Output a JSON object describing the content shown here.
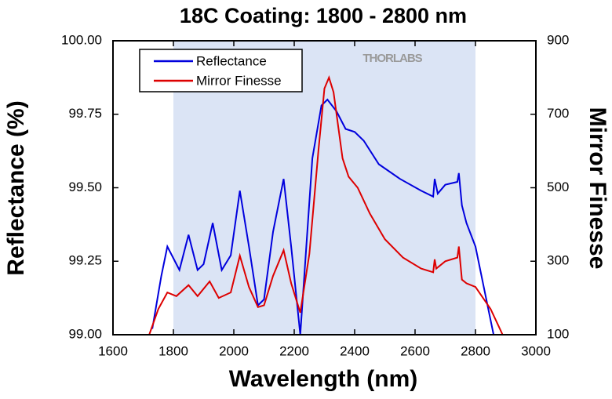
{
  "chart_data": {
    "type": "line",
    "title": "18C Coating: 1800 - 2800 nm",
    "xlabel": "Wavelength (nm)",
    "ylabel": "Reflectance (%)",
    "y2label": "Mirror Finesse",
    "annotation": "THORLABS",
    "highlight_range": [
      1800,
      2800
    ],
    "highlight_color": "#dbe4f5",
    "xlim": [
      1600,
      3000
    ],
    "xticks": [
      1600,
      1800,
      2000,
      2200,
      2400,
      2600,
      2800,
      3000
    ],
    "ylim": [
      99,
      100
    ],
    "yticks": [
      {
        "value": 99,
        "label": "99.00"
      },
      99.25,
      {
        "value": 99.5,
        "label": "99.50"
      },
      99.75,
      {
        "value": 100,
        "label": "100.00"
      }
    ],
    "y2lim": [
      100,
      900
    ],
    "y2ticks": [
      100,
      300,
      500,
      700,
      900
    ],
    "legend": "upper left",
    "series": [
      {
        "name": "Reflectance",
        "color": "#0000dd",
        "x": [
          1730,
          1760,
          1780,
          1800,
          1820,
          1850,
          1880,
          1900,
          1930,
          1960,
          1990,
          2020,
          2050,
          2080,
          2100,
          2130,
          2165,
          2190,
          2220,
          2240,
          2260,
          2290,
          2310,
          2340,
          2370,
          2400,
          2430,
          2480,
          2550,
          2620,
          2660,
          2665,
          2675,
          2700,
          2740,
          2745,
          2755,
          2770,
          2800,
          2830,
          2860
        ],
        "values": [
          99.02,
          99.2,
          99.3,
          99.26,
          99.22,
          99.34,
          99.22,
          99.24,
          99.38,
          99.22,
          99.27,
          99.49,
          99.3,
          99.1,
          99.12,
          99.35,
          99.53,
          99.3,
          99.0,
          99.3,
          99.6,
          99.78,
          99.8,
          99.76,
          99.7,
          99.69,
          99.66,
          99.58,
          99.53,
          99.49,
          99.47,
          99.53,
          99.48,
          99.51,
          99.52,
          99.55,
          99.44,
          99.38,
          99.3,
          99.15,
          99.0
        ]
      },
      {
        "name": "Mirror Finesse",
        "color": "#dd0000",
        "axis": "y2",
        "x": [
          1720,
          1750,
          1780,
          1810,
          1850,
          1880,
          1920,
          1950,
          1990,
          2020,
          2050,
          2080,
          2100,
          2130,
          2165,
          2190,
          2220,
          2250,
          2280,
          2300,
          2315,
          2330,
          2360,
          2380,
          2410,
          2450,
          2500,
          2560,
          2620,
          2660,
          2665,
          2670,
          2700,
          2740,
          2745,
          2755,
          2770,
          2800,
          2850,
          2890
        ],
        "values": [
          100,
          170,
          215,
          205,
          235,
          205,
          245,
          200,
          215,
          315,
          230,
          175,
          180,
          260,
          330,
          240,
          160,
          320,
          600,
          770,
          800,
          760,
          580,
          530,
          500,
          430,
          360,
          310,
          280,
          270,
          305,
          280,
          300,
          310,
          340,
          250,
          240,
          230,
          170,
          100
        ]
      }
    ]
  }
}
